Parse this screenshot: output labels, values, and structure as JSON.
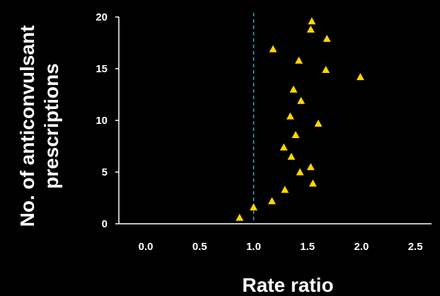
{
  "chart_data": {
    "type": "scatter",
    "xlabel": "Rate ratio",
    "ylabel_lines": [
      "No. of anticonvulsant",
      "prescriptions"
    ],
    "xlim": [
      -0.25,
      2.65
    ],
    "ylim": [
      0,
      20
    ],
    "xticks": [
      "0.0",
      "0.5",
      "1.0",
      "1.5",
      "2.0",
      "2.5"
    ],
    "yticks": [
      "0",
      "5",
      "10",
      "15",
      "20"
    ],
    "reference_line": {
      "x": 1.0,
      "style": "dashed",
      "color": "#3fa7c4"
    },
    "marker": {
      "shape": "triangle",
      "color": "#ffd700"
    },
    "points": [
      {
        "x": 0.87,
        "y": 0.6
      },
      {
        "x": 1.0,
        "y": 1.6
      },
      {
        "x": 1.17,
        "y": 2.2
      },
      {
        "x": 1.29,
        "y": 3.3
      },
      {
        "x": 1.43,
        "y": 5.0
      },
      {
        "x": 1.55,
        "y": 3.9
      },
      {
        "x": 1.53,
        "y": 5.5
      },
      {
        "x": 1.35,
        "y": 6.5
      },
      {
        "x": 1.28,
        "y": 7.4
      },
      {
        "x": 1.39,
        "y": 8.6
      },
      {
        "x": 1.34,
        "y": 10.4
      },
      {
        "x": 1.6,
        "y": 9.7
      },
      {
        "x": 1.44,
        "y": 11.9
      },
      {
        "x": 1.37,
        "y": 13.0
      },
      {
        "x": 1.67,
        "y": 14.9
      },
      {
        "x": 1.42,
        "y": 15.8
      },
      {
        "x": 1.99,
        "y": 14.2
      },
      {
        "x": 1.18,
        "y": 16.9
      },
      {
        "x": 1.68,
        "y": 17.9
      },
      {
        "x": 1.53,
        "y": 18.8
      },
      {
        "x": 1.54,
        "y": 19.6
      }
    ]
  }
}
